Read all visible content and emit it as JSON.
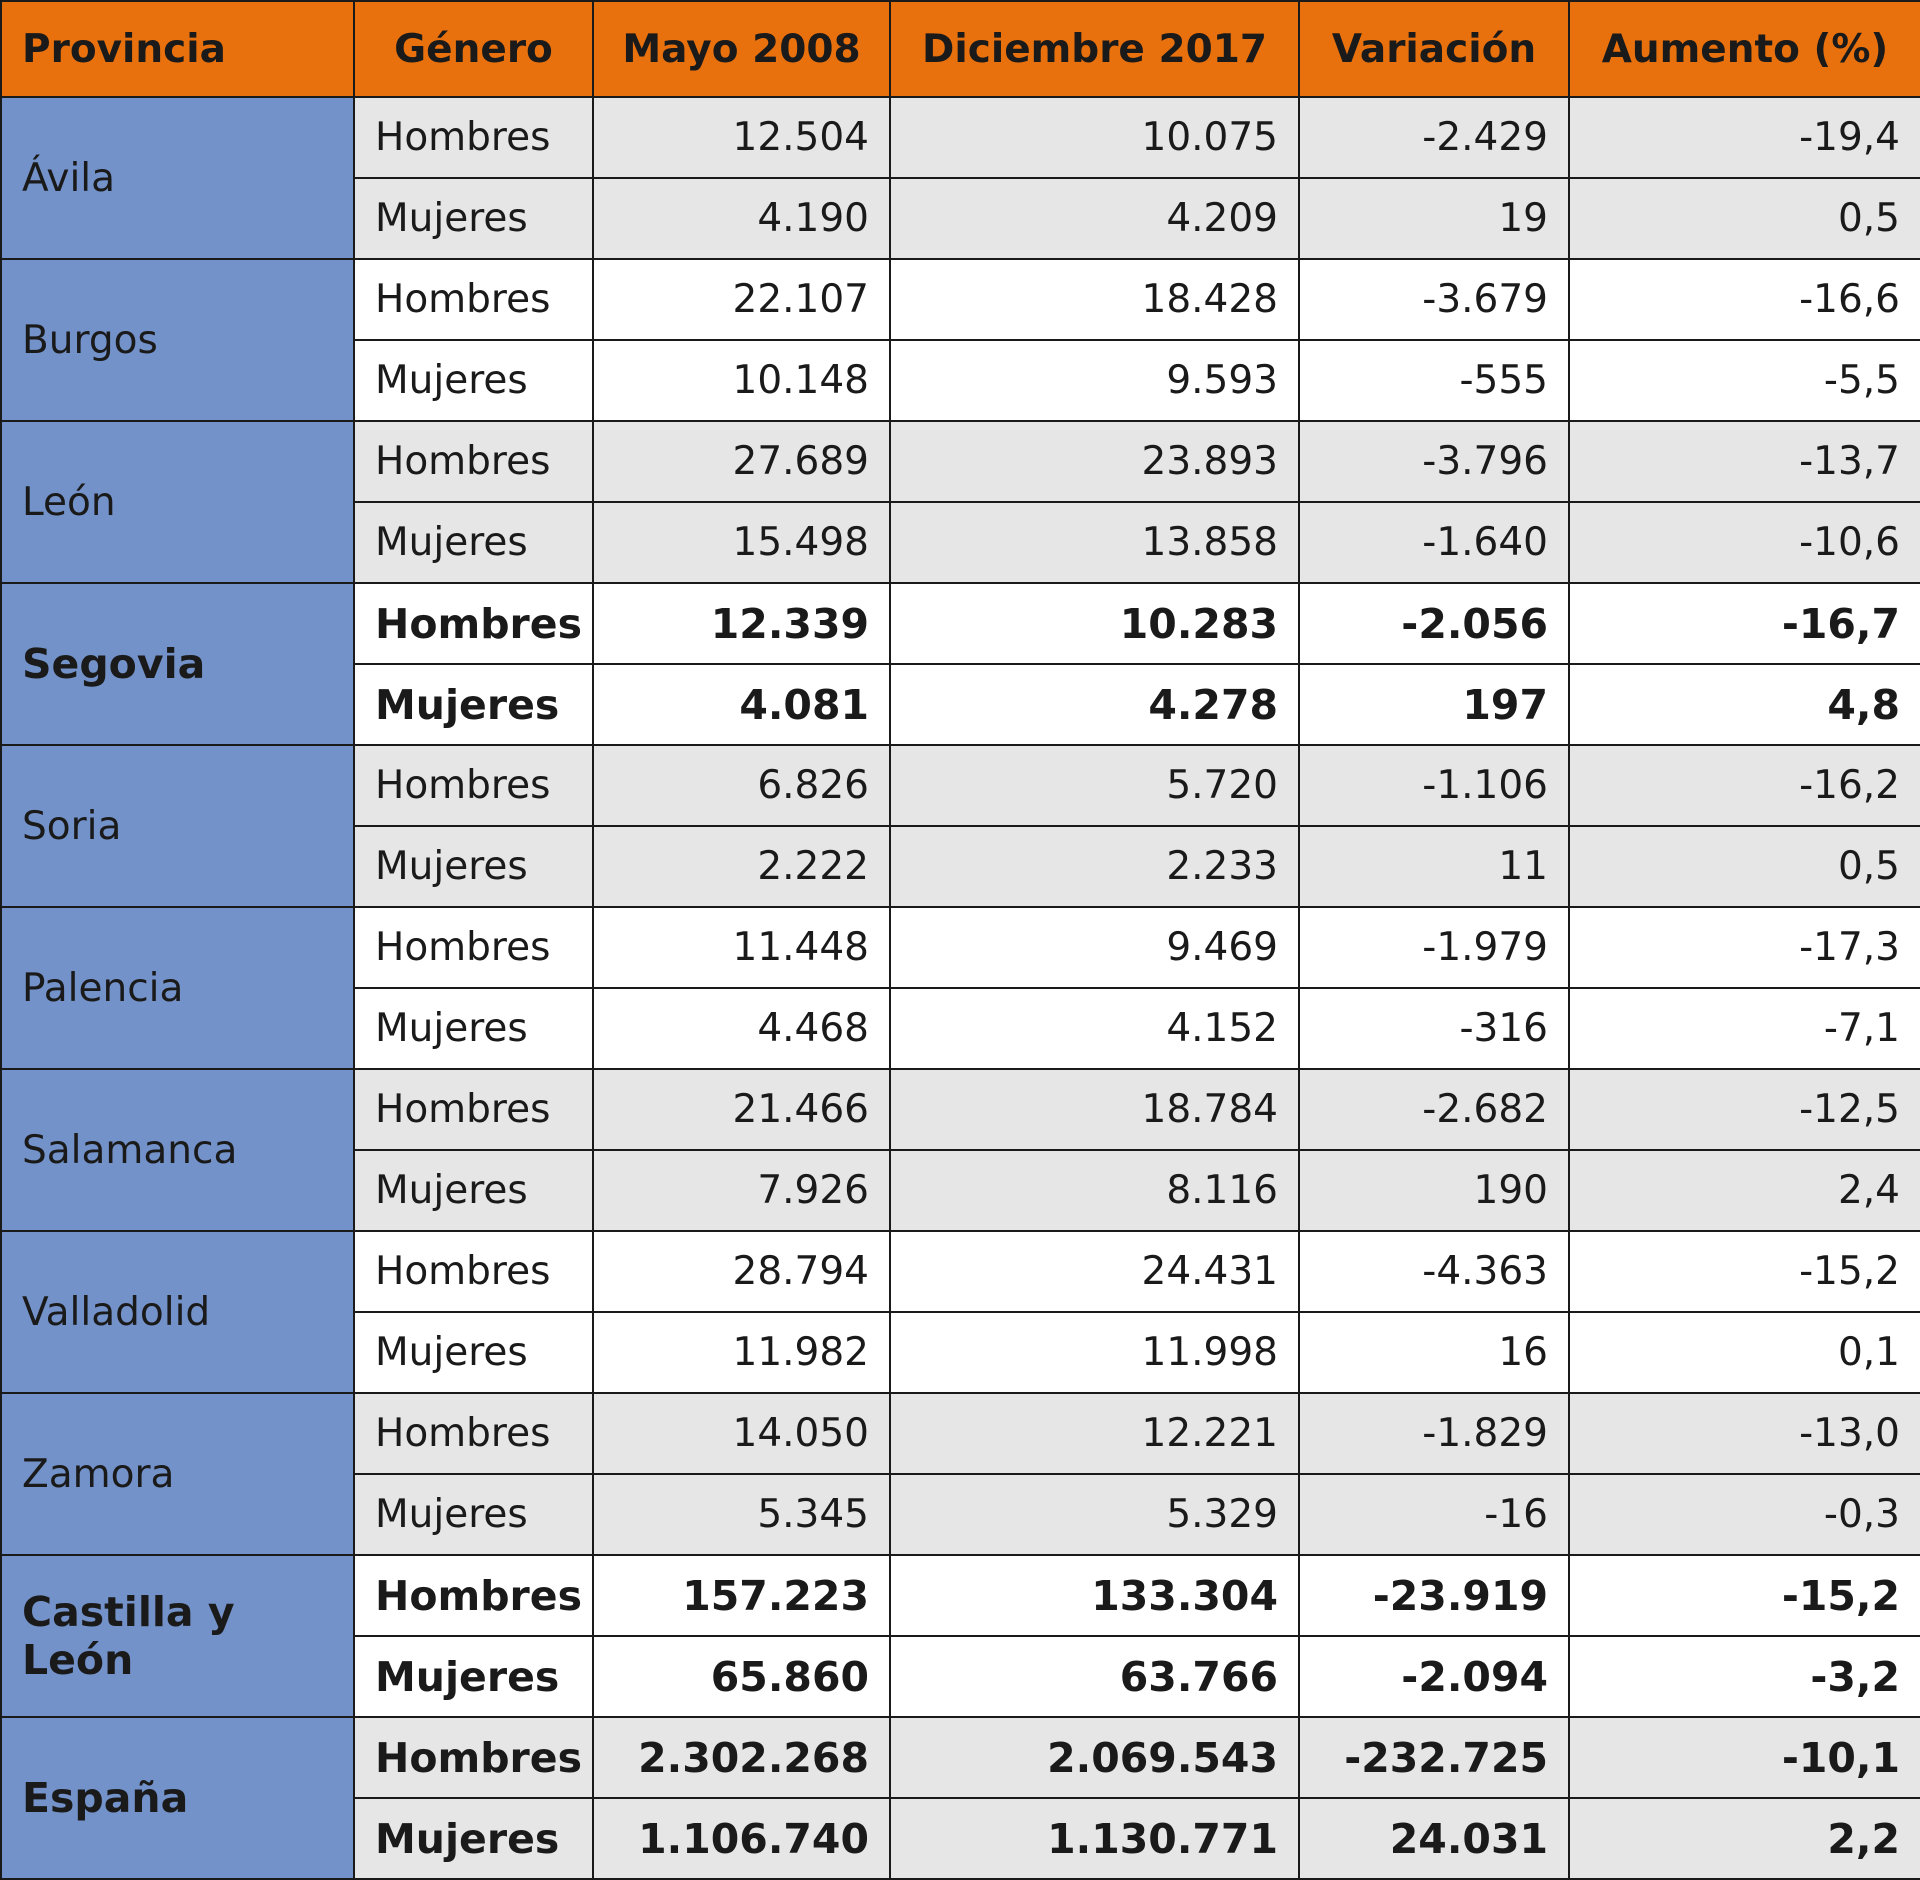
{
  "chart_data": {
    "type": "table",
    "columns": [
      "Provincia",
      "Género",
      "Mayo 2008",
      "Diciembre 2017",
      "Variación",
      "Aumento (%)"
    ],
    "groups": [
      {
        "provincia": "Ávila",
        "bold": false,
        "shade": true,
        "rows": [
          {
            "genero": "Hombres",
            "mayo_2008": "12.504",
            "diciembre_2017": "10.075",
            "variacion": "-2.429",
            "aumento": "-19,4"
          },
          {
            "genero": "Mujeres",
            "mayo_2008": "4.190",
            "diciembre_2017": "4.209",
            "variacion": "19",
            "aumento": "0,5"
          }
        ]
      },
      {
        "provincia": "Burgos",
        "bold": false,
        "shade": false,
        "rows": [
          {
            "genero": "Hombres",
            "mayo_2008": "22.107",
            "diciembre_2017": "18.428",
            "variacion": "-3.679",
            "aumento": "-16,6"
          },
          {
            "genero": "Mujeres",
            "mayo_2008": "10.148",
            "diciembre_2017": "9.593",
            "variacion": "-555",
            "aumento": "-5,5"
          }
        ]
      },
      {
        "provincia": "León",
        "bold": false,
        "shade": true,
        "rows": [
          {
            "genero": "Hombres",
            "mayo_2008": "27.689",
            "diciembre_2017": "23.893",
            "variacion": "-3.796",
            "aumento": "-13,7"
          },
          {
            "genero": "Mujeres",
            "mayo_2008": "15.498",
            "diciembre_2017": "13.858",
            "variacion": "-1.640",
            "aumento": "-10,6"
          }
        ]
      },
      {
        "provincia": "Segovia",
        "bold": true,
        "shade": false,
        "rows": [
          {
            "genero": "Hombres",
            "mayo_2008": "12.339",
            "diciembre_2017": "10.283",
            "variacion": "-2.056",
            "aumento": "-16,7"
          },
          {
            "genero": "Mujeres",
            "mayo_2008": "4.081",
            "diciembre_2017": "4.278",
            "variacion": "197",
            "aumento": "4,8"
          }
        ]
      },
      {
        "provincia": "Soria",
        "bold": false,
        "shade": true,
        "rows": [
          {
            "genero": "Hombres",
            "mayo_2008": "6.826",
            "diciembre_2017": "5.720",
            "variacion": "-1.106",
            "aumento": "-16,2"
          },
          {
            "genero": "Mujeres",
            "mayo_2008": "2.222",
            "diciembre_2017": "2.233",
            "variacion": "11",
            "aumento": "0,5"
          }
        ]
      },
      {
        "provincia": "Palencia",
        "bold": false,
        "shade": false,
        "rows": [
          {
            "genero": "Hombres",
            "mayo_2008": "11.448",
            "diciembre_2017": "9.469",
            "variacion": "-1.979",
            "aumento": "-17,3"
          },
          {
            "genero": "Mujeres",
            "mayo_2008": "4.468",
            "diciembre_2017": "4.152",
            "variacion": "-316",
            "aumento": "-7,1"
          }
        ]
      },
      {
        "provincia": "Salamanca",
        "bold": false,
        "shade": true,
        "rows": [
          {
            "genero": "Hombres",
            "mayo_2008": "21.466",
            "diciembre_2017": "18.784",
            "variacion": "-2.682",
            "aumento": "-12,5"
          },
          {
            "genero": "Mujeres",
            "mayo_2008": "7.926",
            "diciembre_2017": "8.116",
            "variacion": "190",
            "aumento": "2,4"
          }
        ]
      },
      {
        "provincia": "Valladolid",
        "bold": false,
        "shade": false,
        "rows": [
          {
            "genero": "Hombres",
            "mayo_2008": "28.794",
            "diciembre_2017": "24.431",
            "variacion": "-4.363",
            "aumento": "-15,2"
          },
          {
            "genero": "Mujeres",
            "mayo_2008": "11.982",
            "diciembre_2017": "11.998",
            "variacion": "16",
            "aumento": "0,1"
          }
        ]
      },
      {
        "provincia": "Zamora",
        "bold": false,
        "shade": true,
        "rows": [
          {
            "genero": "Hombres",
            "mayo_2008": "14.050",
            "diciembre_2017": "12.221",
            "variacion": "-1.829",
            "aumento": "-13,0"
          },
          {
            "genero": "Mujeres",
            "mayo_2008": "5.345",
            "diciembre_2017": "5.329",
            "variacion": "-16",
            "aumento": "-0,3"
          }
        ]
      },
      {
        "provincia": "Castilla y León",
        "bold": true,
        "shade": false,
        "rows": [
          {
            "genero": "Hombres",
            "mayo_2008": "157.223",
            "diciembre_2017": "133.304",
            "variacion": "-23.919",
            "aumento": "-15,2"
          },
          {
            "genero": "Mujeres",
            "mayo_2008": "65.860",
            "diciembre_2017": "63.766",
            "variacion": "-2.094",
            "aumento": "-3,2"
          }
        ]
      },
      {
        "provincia": "España",
        "bold": true,
        "shade": true,
        "rows": [
          {
            "genero": "Hombres",
            "mayo_2008": "2.302.268",
            "diciembre_2017": "2.069.543",
            "variacion": "-232.725",
            "aumento": "-10,1"
          },
          {
            "genero": "Mujeres",
            "mayo_2008": "1.106.740",
            "diciembre_2017": "1.130.771",
            "variacion": "24.031",
            "aumento": "2,2"
          }
        ]
      }
    ]
  },
  "colors": {
    "header_bg": "#e8710e",
    "province_bg": "#7392c9",
    "shade_bg": "#e6e6e6",
    "plain_bg": "#ffffff",
    "border": "#1a1a1a"
  }
}
